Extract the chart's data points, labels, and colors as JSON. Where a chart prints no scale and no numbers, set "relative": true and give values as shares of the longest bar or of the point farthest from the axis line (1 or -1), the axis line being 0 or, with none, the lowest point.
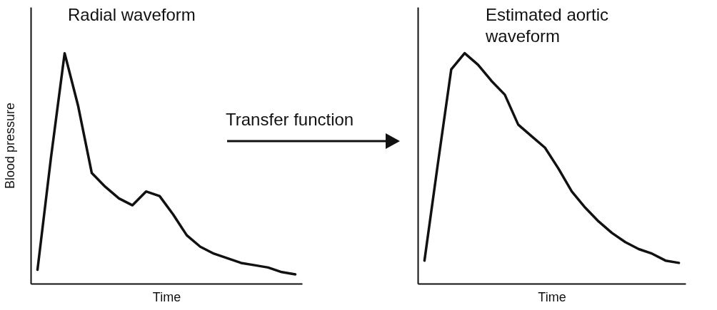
{
  "chart_data": [
    {
      "type": "line",
      "title": "Radial waveform",
      "xlabel": "Time",
      "ylabel": "Blood pressure",
      "relative": true,
      "color": "#111111",
      "annotations": [
        "Transfer function"
      ],
      "categories": [
        null,
        null,
        null,
        null,
        null,
        null,
        null,
        null,
        null,
        null,
        null,
        null,
        null,
        null,
        null,
        null,
        null,
        null,
        null,
        null
      ],
      "values": [
        0.06,
        0.55,
        1.0,
        0.77,
        0.48,
        0.42,
        0.37,
        0.34,
        0.4,
        0.38,
        0.3,
        0.21,
        0.16,
        0.13,
        0.11,
        0.09,
        0.08,
        0.07,
        0.05,
        0.04
      ]
    },
    {
      "type": "line",
      "title": "Estimated aortic waveform",
      "xlabel": "Time",
      "relative": true,
      "color": "#111111",
      "categories": [
        null,
        null,
        null,
        null,
        null,
        null,
        null,
        null,
        null,
        null,
        null,
        null,
        null,
        null,
        null,
        null,
        null,
        null,
        null,
        null
      ],
      "values": [
        0.1,
        0.52,
        0.93,
        1.0,
        0.95,
        0.88,
        0.82,
        0.69,
        0.64,
        0.59,
        0.5,
        0.4,
        0.33,
        0.27,
        0.22,
        0.18,
        0.15,
        0.13,
        0.1,
        0.09
      ]
    }
  ]
}
